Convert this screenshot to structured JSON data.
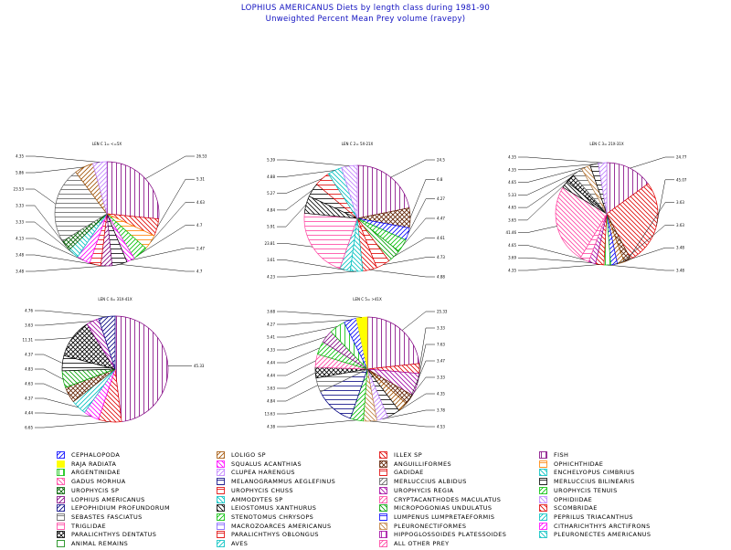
{
  "title": "LOPHIUS AMERICANUS Diets by length class during 1981-90",
  "subtitle": "Unweighted Percent Mean Prey volume (ravepy)",
  "chart_data": [
    {
      "type": "pie",
      "title": "LEN C  1=  <=5X",
      "values": [
        26.53,
        5.31,
        4.63,
        4.7,
        2.47,
        4.7,
        3.48,
        3.48,
        4.13,
        3.33,
        3.33,
        23.53,
        5.86,
        4.35
      ],
      "labels": [
        "26.53",
        "5.31",
        "4.63",
        "4.7",
        "2.47",
        "4.7",
        "3.48",
        "3.48",
        "4.13",
        "3.33",
        "3.33",
        "23.53",
        "5.86",
        "4.35"
      ],
      "categories": [
        "FISH",
        "ILLEX SP",
        "OPHICHTHIDAE",
        "UROPHYCIS TENUIS",
        "SQUALUS ACANTHIAS",
        "MERLUCCIUS BILINEARIS",
        "LOPHIUS AMERICANUS",
        "PARALICHTHYS OBLONGUS",
        "CITHARICHTHYS ARCTIFRONS",
        "ENCHELYOPUS CIMBRIUS",
        "UROPHYCIS SP",
        "SEBASTES FASCIATUS",
        "LOLIGO SP",
        "CLUPEA HARENGUS"
      ]
    },
    {
      "type": "pie",
      "title": "LEN C  2=  5X-21X",
      "values": [
        24.5,
        6.8,
        4.27,
        4.47,
        4.61,
        4.73,
        4.88,
        4.23,
        3.61,
        23.81,
        5.91,
        4.84,
        5.27,
        4.88,
        5.39
      ],
      "labels": [
        "24.5",
        "6.8",
        "4.27",
        "4.47",
        "4.61",
        "4.73",
        "4.88",
        "4.23",
        "3.61",
        "23.81",
        "5.91",
        "4.84",
        "5.27",
        "4.88",
        "5.39"
      ],
      "categories": [
        "FISH",
        "ANGUILLIFORMES",
        "CEPHALOPODA",
        "STENOTOMUS CHRYSOPS",
        "MICROPOGONIAS UNDULATUS",
        "GADIDAE",
        "SCOMBRIDAE",
        "PLEURONECTES AMERICANUS",
        "PEPRILUS TRIACANTHUS",
        "TRIGLIDAE",
        "LEIOSTOMUS XANTHURUS",
        "MERLUCCIUS BILINEARIS",
        "UROPHYCIS CHUSS",
        "AMMODYTES SP",
        "OPHIDIIDAE"
      ]
    },
    {
      "type": "pie",
      "title": "LEN C  3=  21X-31X",
      "values": [
        24.77,
        45.07,
        3.63,
        3.63,
        3.48,
        3.48,
        4.35,
        3.69,
        4.65,
        41.46,
        3.65,
        4.65,
        5.33,
        4.65,
        4.35,
        4.35
      ],
      "labels": [
        "24.77",
        "45.07",
        "3.63",
        "3.63",
        "3.48",
        "3.48",
        "4.35",
        "3.69",
        "4.65",
        "41.46",
        "3.65",
        "4.65",
        "5.33",
        "4.65",
        "4.35",
        "4.35"
      ],
      "categories": [
        "FISH",
        "ILLEX SP",
        "ANGUILLIFORMES",
        "LOLIGO SP",
        "CEPHALOPODA",
        "ARGENTINIDAE",
        "SCOMBRIDAE",
        "UROPHYCIS REGIA",
        "TRIGLIDAE",
        "GADUS MORHUA",
        "LEIOSTOMUS XANTHURUS",
        "PARALICHTHYS DENTATUS",
        "SEBASTES FASCIATUS",
        "PLEURONECTIFORMES",
        "MERLUCCIUS BILINEARIS",
        "CLUPEA HARENGUS"
      ]
    },
    {
      "type": "pie",
      "title": "LEN C  4=  31X-41X",
      "values": [
        45.33,
        6.65,
        4.44,
        4.37,
        4.63,
        4.83,
        4.37,
        11.31,
        3.63,
        4.76
      ],
      "labels": [
        "45.33",
        "6.65",
        "4.44",
        "4.37",
        "4.63",
        "4.83",
        "4.37",
        "11.31",
        "3.63",
        "4.76"
      ],
      "categories": [
        "FISH",
        "ILLEX SP",
        "SQUALUS ACANTHIAS",
        "PEPRILUS TRIACANTHUS",
        "ANGUILLIFORMES",
        "MICROPOGONIAS UNDULATUS",
        "MERLUCCIUS BILINEARIS",
        "PARALICHTHYS DENTATUS",
        "UROPHYCIS REGIA",
        "LEPOPHIDIUM PROFUNDORUM"
      ]
    },
    {
      "type": "pie",
      "title": "LEN C  5=  >41X",
      "values": [
        25.33,
        3.33,
        7.63,
        3.47,
        3.33,
        4.35,
        3.78,
        4.53,
        4.38,
        13.63,
        4.84,
        3.63,
        4.44,
        4.44,
        4.33,
        5.41,
        4.27,
        3.68
      ],
      "labels": [
        "25.33",
        "3.33",
        "7.63",
        "3.47",
        "3.33",
        "4.35",
        "3.78",
        "4.53",
        "4.38",
        "13.63",
        "4.84",
        "3.63",
        "4.44",
        "4.44",
        "4.33",
        "5.41",
        "4.27",
        "3.68"
      ],
      "categories": [
        "FISH",
        "ILLEX SP",
        "UROPHYCIS REGIA",
        "ANGUILLIFORMES",
        "LOLIGO SP",
        "MERLUCCIUS BILINEARIS",
        "CLUPEA HARENGUS",
        "PLEURONECTIFORMES",
        "UROPHYCIS TENUIS",
        "MELANOGRAMMUS AEGLEFINUS",
        "SEBASTES FASCIATUS",
        "PARALICHTHYS DENTATUS",
        "CRYPTACANTHODES MACULATUS",
        "STENOTOMUS CHRYSOPS",
        "LOPHIUS AMERICANUS",
        "ARGENTINIDAE",
        "CEPHALOPODA",
        "RAJA RADIATA"
      ]
    }
  ],
  "legend": [
    {
      "label": "CEPHALOPODA",
      "color": "#0000ff",
      "pattern": "diagA"
    },
    {
      "label": "LOLIGO SP",
      "color": "#a05000",
      "pattern": "diagA"
    },
    {
      "label": "ILLEX SP",
      "color": "#e00000",
      "pattern": "diagB"
    },
    {
      "label": "FISH",
      "color": "#800080",
      "pattern": "vert"
    },
    {
      "label": "RAJA RADIATA",
      "color": "#ffff00",
      "pattern": "solid"
    },
    {
      "label": "SQUALUS ACANTHIAS",
      "color": "#ff00ff",
      "pattern": "diagB"
    },
    {
      "label": "ANGUILLIFORMES",
      "color": "#602000",
      "pattern": "cross"
    },
    {
      "label": "OPHICHTHIDAE",
      "color": "#ff8000",
      "pattern": "horiz"
    },
    {
      "label": "ARGENTINIDAE",
      "color": "#00c000",
      "pattern": "vert"
    },
    {
      "label": "CLUPEA HARENGUS",
      "color": "#c080ff",
      "pattern": "diagA"
    },
    {
      "label": "GADIDAE",
      "color": "#e00000",
      "pattern": "horiz"
    },
    {
      "label": "ENCHELYOPUS CIMBRIUS",
      "color": "#00c0c0",
      "pattern": "diagB"
    },
    {
      "label": "GADUS MORHUA",
      "color": "#ff40a0",
      "pattern": "diagB"
    },
    {
      "label": "MELANOGRAMMUS AEGLEFINUS",
      "color": "#000080",
      "pattern": "horiz"
    },
    {
      "label": "MERLUCCIUS ALBIDUS",
      "color": "#606060",
      "pattern": "diagA"
    },
    {
      "label": "MERLUCCIUS BILINEARIS",
      "color": "#000000",
      "pattern": "horiz"
    },
    {
      "label": "UROPHYCIS SP",
      "color": "#006000",
      "pattern": "cross"
    },
    {
      "label": "UROPHYCIS CHUSS",
      "color": "#e00000",
      "pattern": "horiz"
    },
    {
      "label": "UROPHYCIS REGIA",
      "color": "#a000a0",
      "pattern": "diagB"
    },
    {
      "label": "UROPHYCIS TENUIS",
      "color": "#00c000",
      "pattern": "diagA"
    },
    {
      "label": "LOPHIUS AMERICANUS",
      "color": "#800080",
      "pattern": "diagA"
    },
    {
      "label": "AMMODYTES SP",
      "color": "#00c0c0",
      "pattern": "diagB"
    },
    {
      "label": "CRYPTACANTHODES MACULATUS",
      "color": "#ff40a0",
      "pattern": "diagA"
    },
    {
      "label": "OPHIDIIDAE",
      "color": "#c080ff",
      "pattern": "diagB"
    },
    {
      "label": "LEPOPHIDIUM PROFUNDORUM",
      "color": "#000080",
      "pattern": "diagA"
    },
    {
      "label": "LEIOSTOMUS XANTHURUS",
      "color": "#000000",
      "pattern": "diagB"
    },
    {
      "label": "MICROPOGONIAS UNDULATUS",
      "color": "#00a000",
      "pattern": "diagB"
    },
    {
      "label": "SCOMBRIDAE",
      "color": "#e00000",
      "pattern": "diagB"
    },
    {
      "label": "SEBASTES FASCIATUS",
      "color": "#606060",
      "pattern": "horiz"
    },
    {
      "label": "STENOTOMUS CHRYSOPS",
      "color": "#00c000",
      "pattern": "diagA"
    },
    {
      "label": "LUMPENUS LUMPRETAEFORMIS",
      "color": "#0000ff",
      "pattern": "horiz"
    },
    {
      "label": "PEPRILUS TRIACANTHUS",
      "color": "#00c0c0",
      "pattern": "diagA"
    },
    {
      "label": "TRIGLIDAE",
      "color": "#ff40a0",
      "pattern": "horiz"
    },
    {
      "label": "MACROZOARCES AMERICANUS",
      "color": "#8060ff",
      "pattern": "horiz"
    },
    {
      "label": "PLEURONECTIFORMES",
      "color": "#c08040",
      "pattern": "diagB"
    },
    {
      "label": "CITHARICHTHYS ARCTIFRONS",
      "color": "#ff00ff",
      "pattern": "diagA"
    },
    {
      "label": "PARALICHTHYS DENTATUS",
      "color": "#000000",
      "pattern": "cross"
    },
    {
      "label": "PARALICHTHYS OBLONGUS",
      "color": "#e00000",
      "pattern": "horiz"
    },
    {
      "label": "HIPPOGLOSSOIDES PLATESSOIDES",
      "color": "#a000a0",
      "pattern": "vert"
    },
    {
      "label": "PLEURONECTES AMERICANUS",
      "color": "#00c0c0",
      "pattern": "diagB"
    },
    {
      "label": "ANIMAL REMAINS",
      "color": "#008000",
      "pattern": "none"
    },
    {
      "label": "AVES",
      "color": "#00c0c0",
      "pattern": "diagA"
    },
    {
      "label": "ALL OTHER PREY",
      "color": "#ff40a0",
      "pattern": "diagA"
    }
  ]
}
